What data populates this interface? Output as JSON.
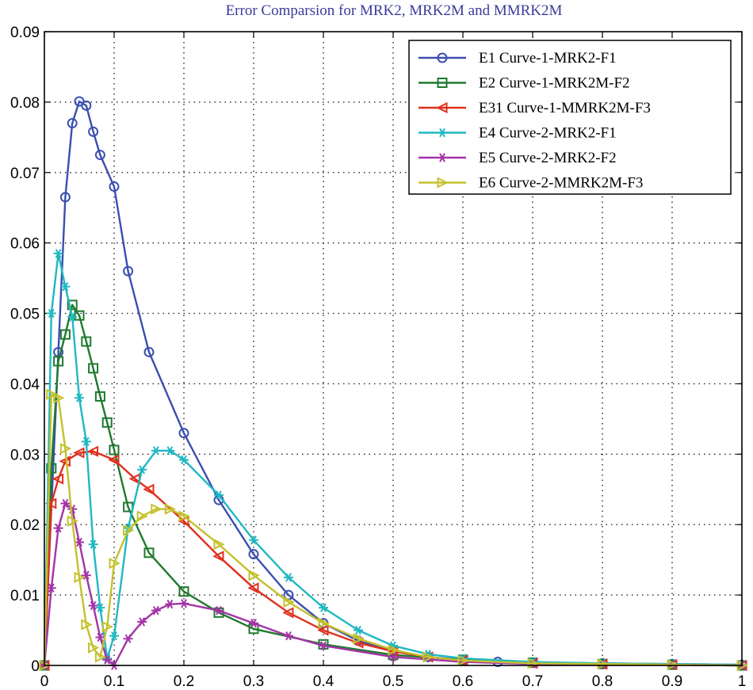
{
  "chart_data": {
    "type": "line",
    "title": "Error Comparsion for MRK2, MRK2M and MMRK2M",
    "xlabel": "",
    "ylabel": "",
    "xlim": [
      0,
      1
    ],
    "ylim": [
      0,
      0.09
    ],
    "grid": true,
    "legend_position": "top-right",
    "x_ticks": [
      0,
      0.1,
      0.2,
      0.3,
      0.4,
      0.5,
      0.6,
      0.7,
      0.8,
      0.9,
      1
    ],
    "x_tick_labels": [
      "0",
      "0.1",
      "0.2",
      "0.3",
      "0.4",
      "0.5",
      "0.6",
      "0.7",
      "0.8",
      "0.9",
      "1"
    ],
    "y_ticks": [
      0,
      0.01,
      0.02,
      0.03,
      0.04,
      0.05,
      0.06,
      0.07,
      0.08,
      0.09
    ],
    "y_tick_labels": [
      "0",
      "0.01",
      "0.02",
      "0.03",
      "0.04",
      "0.05",
      "0.06",
      "0.07",
      "0.08",
      "0.09"
    ],
    "series": [
      {
        "name": "E1 Curve-1-MRK2-F1",
        "color": "#3a4fb0",
        "marker": "circle",
        "x": [
          0,
          0.02,
          0.03,
          0.04,
          0.05,
          0.06,
          0.07,
          0.08,
          0.1,
          0.12,
          0.15,
          0.2,
          0.25,
          0.3,
          0.35,
          0.4,
          0.45,
          0.5,
          0.55,
          0.6,
          0.65,
          0.7,
          0.8,
          0.9,
          1.0
        ],
        "values": [
          0,
          0.0445,
          0.0665,
          0.077,
          0.0801,
          0.0795,
          0.0758,
          0.0725,
          0.068,
          0.056,
          0.0445,
          0.033,
          0.0235,
          0.0158,
          0.01,
          0.006,
          0.0035,
          0.002,
          0.0012,
          0.0008,
          0.0005,
          0.0004,
          0.0003,
          0.0002,
          0.0001
        ]
      },
      {
        "name": "E2 Curve-1-MRK2M-F2",
        "color": "#1f7a2e",
        "marker": "square",
        "x": [
          0,
          0.01,
          0.02,
          0.03,
          0.04,
          0.05,
          0.06,
          0.07,
          0.08,
          0.09,
          0.1,
          0.12,
          0.15,
          0.2,
          0.25,
          0.3,
          0.4,
          0.5,
          0.6,
          0.7,
          0.8,
          0.9,
          1.0
        ],
        "values": [
          0,
          0.028,
          0.0432,
          0.047,
          0.0512,
          0.0497,
          0.046,
          0.0422,
          0.0382,
          0.0345,
          0.0306,
          0.0225,
          0.016,
          0.0105,
          0.0075,
          0.0052,
          0.003,
          0.0015,
          0.0008,
          0.0004,
          0.0002,
          0.0001,
          0
        ]
      },
      {
        "name": "E31 Curve-1-MMRK2M-F3",
        "color": "#e0301e",
        "marker": "triangle-left",
        "x": [
          0,
          0.01,
          0.02,
          0.03,
          0.05,
          0.07,
          0.1,
          0.13,
          0.15,
          0.2,
          0.25,
          0.3,
          0.35,
          0.4,
          0.45,
          0.5,
          0.55,
          0.6,
          0.7,
          0.8,
          0.9,
          1.0
        ],
        "values": [
          0,
          0.023,
          0.0265,
          0.029,
          0.0302,
          0.0304,
          0.0292,
          0.0265,
          0.025,
          0.0205,
          0.0155,
          0.011,
          0.0075,
          0.005,
          0.0032,
          0.002,
          0.0012,
          0.0007,
          0.0003,
          0.0002,
          0.0001,
          0
        ]
      },
      {
        "name": "E4 Curve-2-MRK2-F1",
        "color": "#1fb8c2",
        "marker": "star",
        "x": [
          0,
          0.01,
          0.02,
          0.03,
          0.04,
          0.05,
          0.06,
          0.07,
          0.08,
          0.09,
          0.1,
          0.12,
          0.14,
          0.16,
          0.18,
          0.2,
          0.25,
          0.3,
          0.35,
          0.4,
          0.45,
          0.5,
          0.55,
          0.6,
          0.7,
          0.8,
          0.9,
          1.0
        ],
        "values": [
          0,
          0.05,
          0.0585,
          0.0538,
          0.0495,
          0.038,
          0.0318,
          0.0172,
          0.0082,
          0.001,
          0.0042,
          0.0195,
          0.0278,
          0.0305,
          0.0305,
          0.0292,
          0.0242,
          0.0178,
          0.0125,
          0.0082,
          0.005,
          0.0028,
          0.0016,
          0.001,
          0.0005,
          0.0003,
          0.0002,
          0.0001
        ]
      },
      {
        "name": "E5 Curve-2-MRK2-F2",
        "color": "#a234a6",
        "marker": "star",
        "x": [
          0,
          0.01,
          0.02,
          0.03,
          0.04,
          0.05,
          0.06,
          0.07,
          0.08,
          0.09,
          0.1,
          0.12,
          0.14,
          0.16,
          0.18,
          0.2,
          0.25,
          0.3,
          0.35,
          0.4,
          0.5,
          0.6,
          0.7,
          0.8,
          0.9,
          1.0
        ],
        "values": [
          0,
          0.011,
          0.0195,
          0.023,
          0.0222,
          0.0175,
          0.0128,
          0.0085,
          0.004,
          0.0008,
          0,
          0.0038,
          0.0062,
          0.0078,
          0.0087,
          0.0088,
          0.0078,
          0.006,
          0.0042,
          0.0028,
          0.0012,
          0.0005,
          0.0002,
          0.0001,
          0.0001,
          0
        ]
      },
      {
        "name": "E6 Curve-2-MMRK2M-F3",
        "color": "#c4c12c",
        "marker": "triangle-right",
        "x": [
          0,
          0.01,
          0.02,
          0.03,
          0.04,
          0.05,
          0.06,
          0.07,
          0.08,
          0.09,
          0.1,
          0.12,
          0.14,
          0.16,
          0.18,
          0.2,
          0.25,
          0.3,
          0.35,
          0.4,
          0.45,
          0.5,
          0.55,
          0.6,
          0.7,
          0.8,
          0.9,
          1.0
        ],
        "values": [
          0,
          0.0385,
          0.038,
          0.0308,
          0.0205,
          0.0125,
          0.0058,
          0.0025,
          0.0012,
          0.0055,
          0.0145,
          0.0192,
          0.0212,
          0.0222,
          0.0222,
          0.0212,
          0.0172,
          0.0128,
          0.009,
          0.006,
          0.0038,
          0.0022,
          0.0012,
          0.0007,
          0.0003,
          0.0002,
          0.0001,
          0
        ]
      }
    ]
  }
}
